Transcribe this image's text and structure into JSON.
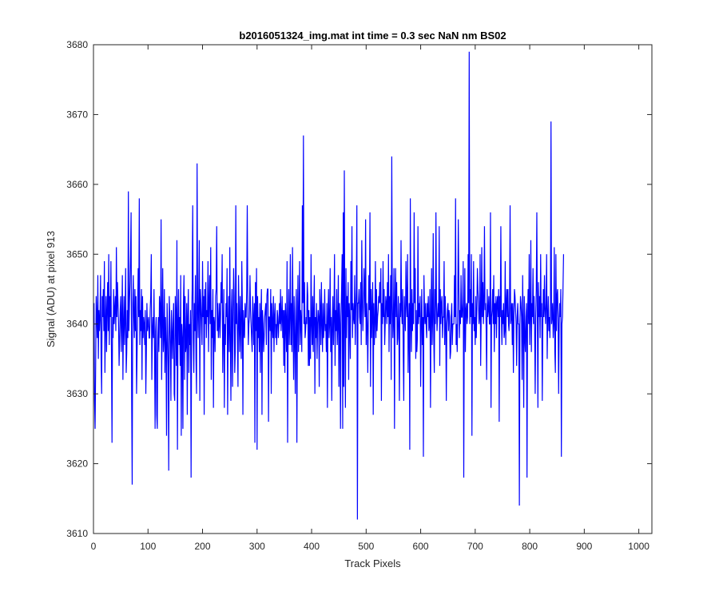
{
  "chart_data": {
    "type": "line",
    "title": "b2016051324_img.mat int time = 0.3 sec  NaN nm BS02",
    "xlabel": "Track Pixels",
    "ylabel": "Signal (ADU) at pixel 913",
    "xlim": [
      0,
      1024
    ],
    "ylim": [
      3610,
      3680
    ],
    "xticks": [
      0,
      100,
      200,
      300,
      400,
      500,
      600,
      700,
      800,
      900,
      1000
    ],
    "yticks": [
      3610,
      3620,
      3630,
      3640,
      3650,
      3660,
      3670,
      3680
    ],
    "grid": false,
    "series": [
      {
        "color": "#0000ff",
        "x_start": 1,
        "x_step": 1,
        "values": [
          3643,
          3629,
          3625,
          3634,
          3644,
          3641,
          3638,
          3647,
          3635,
          3642,
          3639,
          3641,
          3647,
          3635,
          3630,
          3644,
          3641,
          3645,
          3639,
          3649,
          3633,
          3640,
          3644,
          3636,
          3642,
          3646,
          3639,
          3650,
          3637,
          3644,
          3641,
          3649,
          3636,
          3623,
          3641,
          3638,
          3645,
          3640,
          3642,
          3644,
          3639,
          3651,
          3641,
          3646,
          3643,
          3640,
          3634,
          3638,
          3642,
          3644,
          3636,
          3641,
          3647,
          3632,
          3640,
          3644,
          3637,
          3641,
          3648,
          3633,
          3636,
          3642,
          3638,
          3659,
          3639,
          3643,
          3646,
          3650,
          3656,
          3630,
          3617,
          3643,
          3647,
          3641,
          3638,
          3645,
          3639,
          3644,
          3630,
          3636,
          3642,
          3648,
          3641,
          3658,
          3637,
          3642,
          3639,
          3645,
          3632,
          3644,
          3638,
          3641,
          3640,
          3637,
          3642,
          3630,
          3636,
          3643,
          3639,
          3640,
          3641,
          3638,
          3638,
          3642,
          3644,
          3650,
          3632,
          3639,
          3641,
          3638,
          3645,
          3636,
          3625,
          3639,
          3641,
          3627,
          3625,
          3638,
          3641,
          3636,
          3644,
          3642,
          3638,
          3655,
          3632,
          3640,
          3648,
          3636,
          3638,
          3645,
          3633,
          3641,
          3637,
          3624,
          3643,
          3639,
          3634,
          3619,
          3644,
          3641,
          3637,
          3629,
          3642,
          3639,
          3635,
          3640,
          3643,
          3630,
          3629,
          3644,
          3641,
          3634,
          3652,
          3622,
          3640,
          3645,
          3637,
          3641,
          3634,
          3647,
          3624,
          3640,
          3638,
          3625,
          3643,
          3647,
          3632,
          3644,
          3636,
          3637,
          3643,
          3627,
          3641,
          3645,
          3633,
          3640,
          3637,
          3642,
          3618,
          3640,
          3645,
          3657,
          3638,
          3633,
          3643,
          3639,
          3647,
          3635,
          3630,
          3663,
          3642,
          3638,
          3644,
          3652,
          3629,
          3645,
          3643,
          3640,
          3637,
          3649,
          3641,
          3644,
          3627,
          3645,
          3640,
          3646,
          3638,
          3642,
          3641,
          3649,
          3636,
          3643,
          3647,
          3640,
          3651,
          3632,
          3642,
          3638,
          3645,
          3628,
          3641,
          3640,
          3636,
          3644,
          3645,
          3654,
          3639,
          3643,
          3638,
          3640,
          3643,
          3638,
          3641,
          3646,
          3643,
          3650,
          3633,
          3639,
          3645,
          3628,
          3640,
          3637,
          3643,
          3641,
          3648,
          3627,
          3640,
          3644,
          3636,
          3651,
          3638,
          3629,
          3642,
          3645,
          3631,
          3640,
          3648,
          3644,
          3633,
          3636,
          3657,
          3640,
          3643,
          3638,
          3631,
          3647,
          3641,
          3636,
          3644,
          3639,
          3635,
          3649,
          3643,
          3627,
          3642,
          3639,
          3638,
          3643,
          3641,
          3641,
          3645,
          3657,
          3643,
          3637,
          3640,
          3641,
          3647,
          3642,
          3640,
          3638,
          3636,
          3644,
          3641,
          3637,
          3643,
          3623,
          3646,
          3639,
          3648,
          3622,
          3644,
          3638,
          3641,
          3636,
          3643,
          3633,
          3641,
          3645,
          3627,
          3642,
          3640,
          3636,
          3638,
          3641,
          3642,
          3643,
          3637,
          3644,
          3645,
          3645,
          3626,
          3641,
          3641,
          3639,
          3645,
          3630,
          3643,
          3640,
          3638,
          3644,
          3636,
          3641,
          3643,
          3638,
          3640,
          3637,
          3642,
          3641,
          3638,
          3640,
          3643,
          3640,
          3645,
          3639,
          3641,
          3644,
          3638,
          3642,
          3634,
          3642,
          3633,
          3643,
          3640,
          3636,
          3649,
          3623,
          3640,
          3645,
          3637,
          3641,
          3650,
          3637,
          3643,
          3636,
          3651,
          3641,
          3632,
          3644,
          3638,
          3630,
          3642,
          3645,
          3623,
          3640,
          3647,
          3636,
          3641,
          3649,
          3637,
          3642,
          3640,
          3636,
          3657,
          3643,
          3667,
          3640,
          3646,
          3638,
          3639,
          3641,
          3640,
          3646,
          3644,
          3634,
          3642,
          3634,
          3641,
          3635,
          3650,
          3640,
          3637,
          3644,
          3636,
          3642,
          3647,
          3630,
          3641,
          3638,
          3643,
          3635,
          3640,
          3642,
          3641,
          3631,
          3645,
          3642,
          3637,
          3646,
          3640,
          3636,
          3643,
          3638,
          3640,
          3645,
          3639,
          3640,
          3636,
          3643,
          3628,
          3641,
          3645,
          3638,
          3640,
          3648,
          3636,
          3641,
          3629,
          3640,
          3644,
          3637,
          3641,
          3650,
          3634,
          3642,
          3639,
          3645,
          3637,
          3640,
          3647,
          3631,
          3643,
          3640,
          3625,
          3641,
          3645,
          3650,
          3625,
          3656,
          3631,
          3662,
          3640,
          3628,
          3648,
          3638,
          3644,
          3641,
          3646,
          3632,
          3643,
          3640,
          3635,
          3649,
          3642,
          3654,
          3638,
          3643,
          3641,
          3640,
          3647,
          3637,
          3642,
          3645,
          3657,
          3612,
          3643,
          3643,
          3645,
          3641,
          3640,
          3646,
          3637,
          3652,
          3644,
          3639,
          3642,
          3648,
          3645,
          3641,
          3655,
          3637,
          3643,
          3640,
          3633,
          3641,
          3647,
          3642,
          3656,
          3631,
          3645,
          3638,
          3642,
          3646,
          3627,
          3643,
          3637,
          3640,
          3649,
          3638,
          3645,
          3639,
          3641,
          3642,
          3644,
          3643,
          3646,
          3643,
          3648,
          3629,
          3643,
          3640,
          3649,
          3641,
          3645,
          3637,
          3640,
          3644,
          3643,
          3640,
          3646,
          3641,
          3650,
          3636,
          3644,
          3640,
          3647,
          3632,
          3664,
          3643,
          3638,
          3641,
          3648,
          3625,
          3643,
          3648,
          3641,
          3646,
          3637,
          3638,
          3644,
          3640,
          3629,
          3643,
          3641,
          3652,
          3642,
          3640,
          3645,
          3636,
          3629,
          3644,
          3641,
          3639,
          3649,
          3643,
          3641,
          3650,
          3633,
          3640,
          3643,
          3622,
          3658,
          3641,
          3636,
          3645,
          3639,
          3643,
          3640,
          3656,
          3643,
          3648,
          3635,
          3642,
          3636,
          3638,
          3654,
          3640,
          3643,
          3641,
          3644,
          3631,
          3640,
          3645,
          3637,
          3641,
          3621,
          3647,
          3642,
          3640,
          3643,
          3640,
          3638,
          3643,
          3641,
          3644,
          3639,
          3640,
          3645,
          3628,
          3641,
          3648,
          3637,
          3641,
          3653,
          3638,
          3633,
          3645,
          3640,
          3656,
          3643,
          3639,
          3641,
          3643,
          3641,
          3654,
          3634,
          3645,
          3640,
          3643,
          3644,
          3638,
          3641,
          3641,
          3649,
          3637,
          3644,
          3640,
          3629,
          3640,
          3642,
          3643,
          3639,
          3642,
          3641,
          3635,
          3636,
          3641,
          3643,
          3637,
          3640,
          3640,
          3640,
          3647,
          3641,
          3658,
          3637,
          3640,
          3636,
          3642,
          3655,
          3646,
          3638,
          3642,
          3640,
          3647,
          3641,
          3641,
          3643,
          3649,
          3618,
          3641,
          3648,
          3636,
          3642,
          3643,
          3640,
          3641,
          3650,
          3643,
          3679,
          3640,
          3645,
          3641,
          3650,
          3624,
          3643,
          3640,
          3649,
          3639,
          3641,
          3637,
          3644,
          3638,
          3642,
          3648,
          3645,
          3643,
          3640,
          3641,
          3650,
          3634,
          3641,
          3651,
          3641,
          3646,
          3640,
          3643,
          3654,
          3642,
          3643,
          3640,
          3632,
          3645,
          3641,
          3642,
          3644,
          3640,
          3640,
          3656,
          3628,
          3641,
          3642,
          3645,
          3640,
          3647,
          3636,
          3643,
          3640,
          3644,
          3638,
          3643,
          3644,
          3641,
          3645,
          3626,
          3644,
          3641,
          3654,
          3641,
          3637,
          3642,
          3640,
          3643,
          3638,
          3639,
          3649,
          3637,
          3643,
          3645,
          3641,
          3645,
          3640,
          3639,
          3643,
          3657,
          3640,
          3641,
          3643,
          3637,
          3643,
          3633,
          3641,
          3645,
          3644,
          3642,
          3640,
          3634,
          3641,
          3643,
          3640,
          3640,
          3614,
          3640,
          3644,
          3643,
          3641,
          3632,
          3647,
          3640,
          3628,
          3644,
          3638,
          3636,
          3641,
          3643,
          3618,
          3641,
          3645,
          3640,
          3650,
          3637,
          3641,
          3652,
          3636,
          3643,
          3641,
          3648,
          3640,
          3644,
          3639,
          3630,
          3641,
          3645,
          3656,
          3641,
          3628,
          3646,
          3641,
          3644,
          3638,
          3650,
          3641,
          3643,
          3629,
          3640,
          3645,
          3641,
          3647,
          3642,
          3640,
          3643,
          3650,
          3635,
          3641,
          3644,
          3639,
          3641,
          3638,
          3643,
          3669,
          3640,
          3641,
          3643,
          3638,
          3640,
          3651,
          3636,
          3633,
          3650,
          3639,
          3644,
          3645,
          3641,
          3630,
          3640,
          3643,
          3641,
          3645,
          3621,
          3640,
          3641,
          3645,
          3650
        ]
      }
    ]
  }
}
